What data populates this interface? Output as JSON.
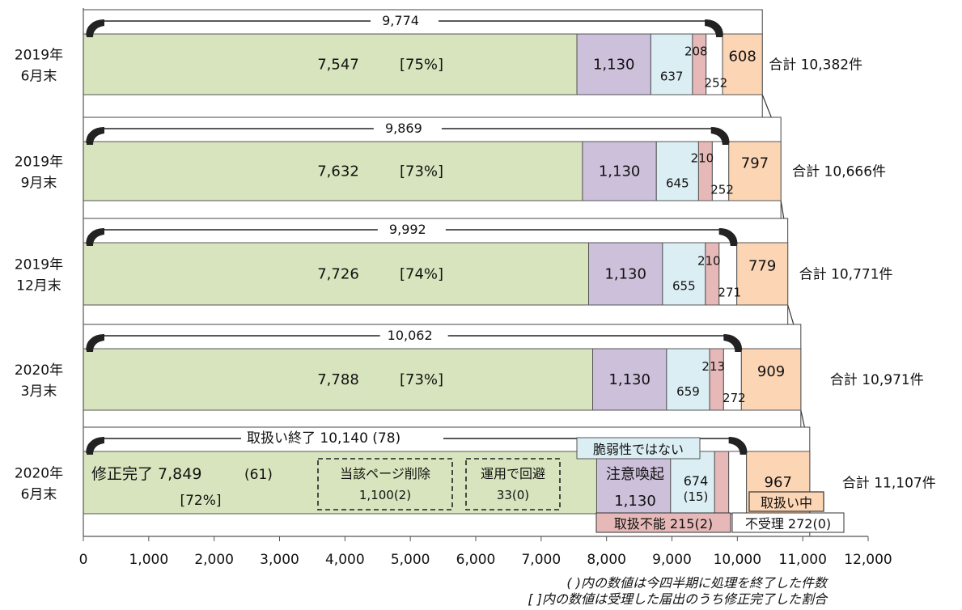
{
  "chart_data": {
    "type": "bar",
    "orientation": "horizontal",
    "stacked": true,
    "xlim": [
      0,
      12000
    ],
    "x_ticks": [
      0,
      1000,
      2000,
      3000,
      4000,
      5000,
      6000,
      7000,
      8000,
      9000,
      10000,
      11000,
      12000
    ],
    "x_tick_labels": [
      "0",
      "1,000",
      "2,000",
      "3,000",
      "4,000",
      "5,000",
      "6,000",
      "7,000",
      "8,000",
      "9,000",
      "10,000",
      "11,000",
      "12,000"
    ],
    "grid": false,
    "colors": {
      "fixed": "#d7e4bd",
      "caution": "#ccc0da",
      "not_vuln": "#dbeef4",
      "cannot": "#e6b9b8",
      "rejected": "#ffffff",
      "handling": "#fcd5b5"
    },
    "rows": [
      {
        "label_line1": "2019年",
        "label_line2": "6月末",
        "values": [
          7547,
          1130,
          637,
          208,
          252,
          608
        ],
        "value_labels": [
          "7,547",
          "1,130",
          "637",
          "208",
          "252",
          "608"
        ],
        "percent": "[75%]",
        "closed_total": "9,774",
        "closed_value": 9774,
        "total_text": "合計 10,382件"
      },
      {
        "label_line1": "2019年",
        "label_line2": "9月末",
        "values": [
          7632,
          1130,
          645,
          210,
          252,
          797
        ],
        "value_labels": [
          "7,632",
          "1,130",
          "645",
          "210",
          "252",
          "797"
        ],
        "percent": "[73%]",
        "closed_total": "9,869",
        "closed_value": 9869,
        "total_text": "合計 10,666件"
      },
      {
        "label_line1": "2019年",
        "label_line2": "12月末",
        "values": [
          7726,
          1130,
          655,
          210,
          271,
          779
        ],
        "value_labels": [
          "7,726",
          "1,130",
          "655",
          "210",
          "271",
          "779"
        ],
        "percent": "[74%]",
        "closed_total": "9,992",
        "closed_value": 9992,
        "total_text": "合計 10,771件"
      },
      {
        "label_line1": "2020年",
        "label_line2": "3月末",
        "values": [
          7788,
          1130,
          659,
          213,
          272,
          909
        ],
        "value_labels": [
          "7,788",
          "1,130",
          "659",
          "213",
          "272",
          "909"
        ],
        "percent": "[73%]",
        "closed_total": "10,062",
        "closed_value": 10062,
        "total_text": "合計 10,971件"
      },
      {
        "label_line1": "2020年",
        "label_line2": "6月末",
        "values": [
          7849,
          1130,
          674,
          215,
          272,
          967
        ],
        "value_labels": [
          "7,849",
          "1,130",
          "674",
          "215",
          "272",
          "967"
        ],
        "percent": "[72%]",
        "closed_total": "10,140 (78)",
        "closed_value": 10140,
        "total_text": "合計 11,107件"
      }
    ],
    "last_row_annotations": {
      "closed_label": "取扱い終了 10,140 (78)",
      "fixed_label": "修正完了 7,849",
      "fixed_delta": "(61)",
      "fixed_percent": "[72%]",
      "page_deleted_title": "当該ページ削除",
      "page_deleted_value": "1,100(2)",
      "operational_title": "運用で回避",
      "operational_value": "33(0)",
      "not_vuln_label": "脆弱性ではない",
      "caution_label": "注意喚起",
      "caution_value": "1,130",
      "not_vuln_value": "674",
      "not_vuln_delta": "(15)",
      "cannot_label": "取扱不能 215(2)",
      "rejected_label": "不受理 272(0)",
      "handling_label": "取扱い中",
      "handling_value": "967"
    },
    "notes": [
      "( )内の数値は今四半期に処理を終了した件数",
      "[ ]内の数値は受理した届出のうち修正完了した割合"
    ]
  }
}
